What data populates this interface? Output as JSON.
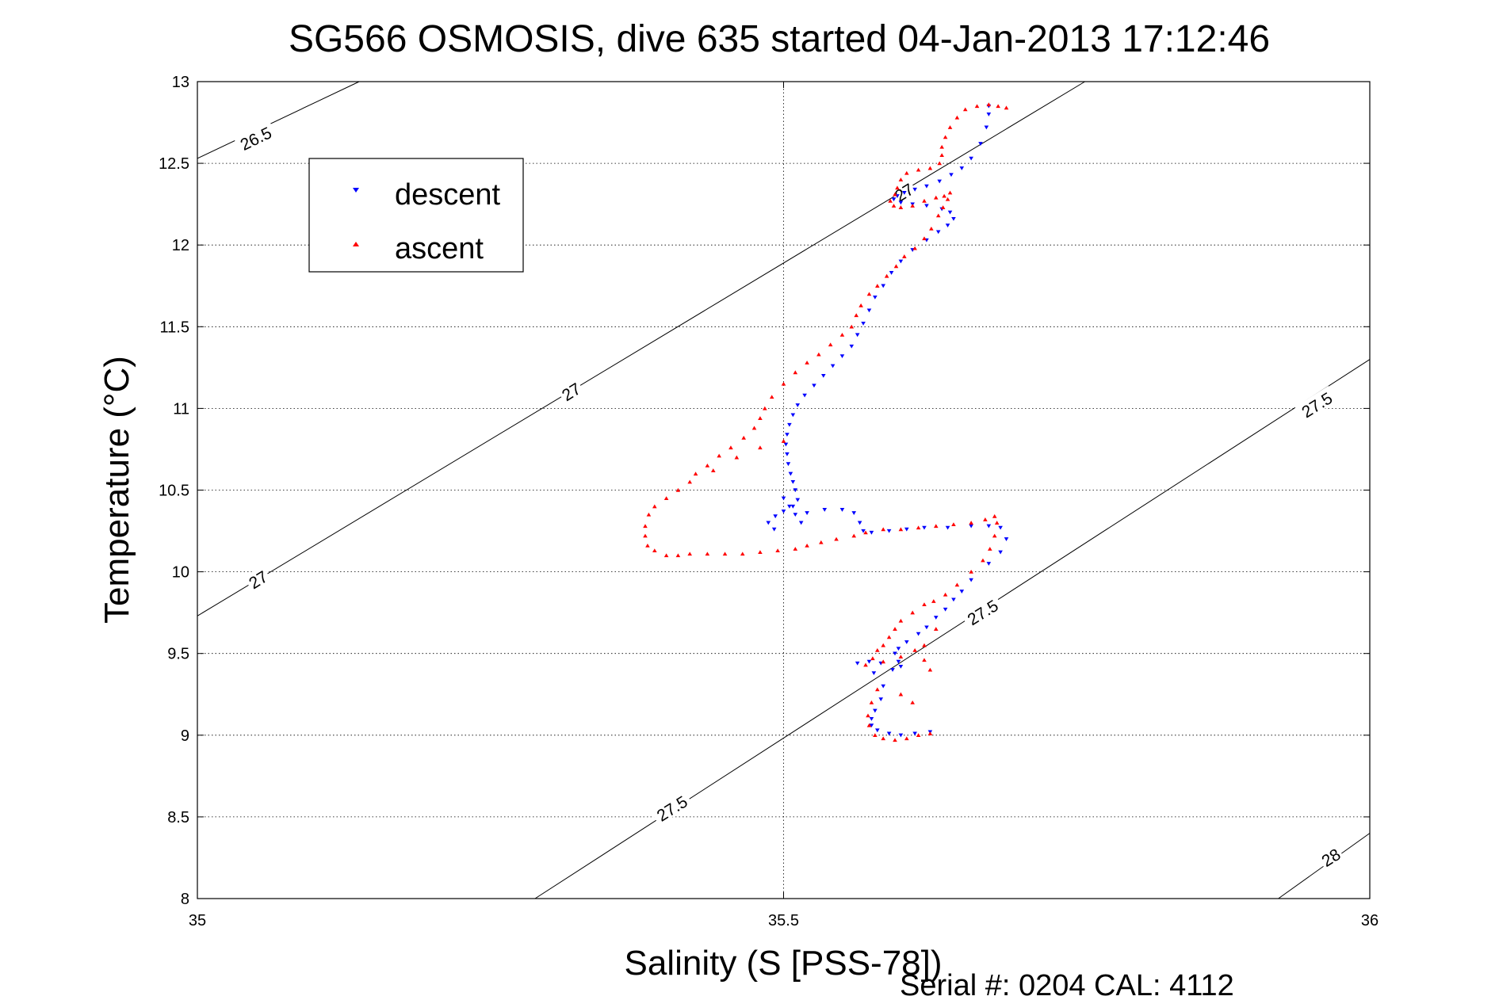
{
  "chart_data": {
    "type": "scatter",
    "title": "SG566 OSMOSIS, dive 635 started 04-Jan-2013 17:12:46",
    "xlabel": "Salinity (S [PSS-78])",
    "ylabel": "Temperature (°C)",
    "xlim": [
      35,
      36
    ],
    "ylim": [
      8,
      13
    ],
    "x_ticks": [
      "35",
      "35.5",
      "36"
    ],
    "y_ticks": [
      "8",
      "8.5",
      "9",
      "9.5",
      "10",
      "10.5",
      "11",
      "11.5",
      "12",
      "12.5",
      "13"
    ],
    "grid": true,
    "legend_position": "top-left",
    "footer": "Serial #: 0204  CAL: 4112",
    "isopycnals": [
      {
        "label": "26.5",
        "points": [
          [
            35,
            12.53
          ],
          [
            35.138,
            13.0
          ]
        ]
      },
      {
        "label": "27",
        "points": [
          [
            35,
            9.73
          ],
          [
            35.757,
            13.0
          ]
        ]
      },
      {
        "label": "27.5",
        "points": [
          [
            35.288,
            8.0
          ],
          [
            36.0,
            11.3
          ]
        ]
      },
      {
        "label": "28",
        "points": [
          [
            35.922,
            8.0
          ],
          [
            36.0,
            8.4
          ]
        ]
      }
    ],
    "isopycnal_labels": [
      {
        "text": "26.5",
        "x": 35.05,
        "y": 12.65,
        "angle": -26
      },
      {
        "text": "27",
        "x": 35.319,
        "y": 11.1,
        "angle": -32
      },
      {
        "text": "27",
        "x": 35.052,
        "y": 9.95,
        "angle": -32
      },
      {
        "text": "27",
        "x": 35.603,
        "y": 12.32,
        "angle": -32
      },
      {
        "text": "27.5",
        "x": 35.955,
        "y": 11.02,
        "angle": -32
      },
      {
        "text": "27.5",
        "x": 35.67,
        "y": 9.75,
        "angle": -32
      },
      {
        "text": "27.5",
        "x": 35.405,
        "y": 8.55,
        "angle": -32
      },
      {
        "text": "28",
        "x": 35.967,
        "y": 8.25,
        "angle": -32
      }
    ],
    "series": [
      {
        "name": "descent",
        "color": "#0000ff",
        "marker": "triangle-down",
        "points": [
          [
            35.675,
            12.85
          ],
          [
            35.675,
            12.8
          ],
          [
            35.673,
            12.72
          ],
          [
            35.668,
            12.62
          ],
          [
            35.66,
            12.53
          ],
          [
            35.652,
            12.47
          ],
          [
            35.643,
            12.43
          ],
          [
            35.633,
            12.39
          ],
          [
            35.622,
            12.36
          ],
          [
            35.612,
            12.34
          ],
          [
            35.603,
            12.32
          ],
          [
            35.597,
            12.3
          ],
          [
            35.594,
            12.28
          ],
          [
            35.6,
            12.26
          ],
          [
            35.61,
            12.25
          ],
          [
            35.622,
            12.24
          ],
          [
            35.635,
            12.22
          ],
          [
            35.642,
            12.2
          ],
          [
            35.645,
            12.16
          ],
          [
            35.64,
            12.12
          ],
          [
            35.632,
            12.08
          ],
          [
            35.622,
            12.03
          ],
          [
            35.61,
            11.97
          ],
          [
            35.6,
            11.9
          ],
          [
            35.592,
            11.83
          ],
          [
            35.585,
            11.75
          ],
          [
            35.578,
            11.68
          ],
          [
            35.573,
            11.6
          ],
          [
            35.568,
            11.52
          ],
          [
            35.563,
            11.45
          ],
          [
            35.558,
            11.38
          ],
          [
            35.55,
            11.32
          ],
          [
            35.542,
            11.26
          ],
          [
            35.534,
            11.2
          ],
          [
            35.526,
            11.14
          ],
          [
            35.518,
            11.08
          ],
          [
            35.512,
            11.02
          ],
          [
            35.508,
            10.96
          ],
          [
            35.505,
            10.9
          ],
          [
            35.503,
            10.84
          ],
          [
            35.502,
            10.78
          ],
          [
            35.503,
            10.72
          ],
          [
            35.504,
            10.66
          ],
          [
            35.506,
            10.6
          ],
          [
            35.508,
            10.55
          ],
          [
            35.51,
            10.5
          ],
          [
            35.512,
            10.44
          ],
          [
            35.508,
            10.4
          ],
          [
            35.5,
            10.37
          ],
          [
            35.493,
            10.34
          ],
          [
            35.487,
            10.3
          ],
          [
            35.492,
            10.26
          ],
          [
            35.5,
            10.45
          ],
          [
            35.505,
            10.4
          ],
          [
            35.51,
            10.35
          ],
          [
            35.515,
            10.3
          ],
          [
            35.52,
            10.36
          ],
          [
            35.535,
            10.38
          ],
          [
            35.55,
            10.38
          ],
          [
            35.56,
            10.36
          ],
          [
            35.565,
            10.3
          ],
          [
            35.568,
            10.25
          ],
          [
            35.575,
            10.24
          ],
          [
            35.59,
            10.25
          ],
          [
            35.605,
            10.26
          ],
          [
            35.62,
            10.27
          ],
          [
            35.64,
            10.27
          ],
          [
            35.66,
            10.28
          ],
          [
            35.675,
            10.28
          ],
          [
            35.685,
            10.27
          ],
          [
            35.69,
            10.2
          ],
          [
            35.685,
            10.12
          ],
          [
            35.675,
            10.05
          ],
          [
            35.66,
            9.95
          ],
          [
            35.652,
            9.88
          ],
          [
            35.645,
            9.83
          ],
          [
            35.638,
            9.77
          ],
          [
            35.63,
            9.72
          ],
          [
            35.622,
            9.66
          ],
          [
            35.615,
            9.62
          ],
          [
            35.605,
            9.57
          ],
          [
            35.598,
            9.53
          ],
          [
            35.595,
            9.5
          ],
          [
            35.598,
            9.45
          ],
          [
            35.6,
            9.42
          ],
          [
            35.593,
            9.4
          ],
          [
            35.583,
            9.44
          ],
          [
            35.573,
            9.45
          ],
          [
            35.563,
            9.44
          ],
          [
            35.577,
            9.38
          ],
          [
            35.585,
            9.3
          ],
          [
            35.583,
            9.22
          ],
          [
            35.578,
            9.15
          ],
          [
            35.575,
            9.1
          ],
          [
            35.575,
            9.06
          ],
          [
            35.58,
            9.03
          ],
          [
            35.59,
            9.01
          ],
          [
            35.6,
            9.0
          ],
          [
            35.612,
            9.01
          ],
          [
            35.625,
            9.02
          ]
        ]
      },
      {
        "name": "ascent",
        "color": "#ff0000",
        "marker": "triangle-up",
        "points": [
          [
            35.69,
            12.84
          ],
          [
            35.683,
            12.85
          ],
          [
            35.675,
            12.86
          ],
          [
            35.665,
            12.85
          ],
          [
            35.655,
            12.83
          ],
          [
            35.648,
            12.78
          ],
          [
            35.642,
            12.72
          ],
          [
            35.638,
            12.66
          ],
          [
            35.635,
            12.6
          ],
          [
            35.635,
            12.55
          ],
          [
            35.633,
            12.5
          ],
          [
            35.625,
            12.47
          ],
          [
            35.615,
            12.46
          ],
          [
            35.605,
            12.44
          ],
          [
            35.6,
            12.4
          ],
          [
            35.597,
            12.35
          ],
          [
            35.595,
            12.31
          ],
          [
            35.591,
            12.27
          ],
          [
            35.594,
            12.24
          ],
          [
            35.6,
            12.23
          ],
          [
            35.61,
            12.24
          ],
          [
            35.62,
            12.27
          ],
          [
            35.63,
            12.29
          ],
          [
            35.637,
            12.3
          ],
          [
            35.642,
            12.32
          ],
          [
            35.64,
            12.28
          ],
          [
            35.636,
            12.23
          ],
          [
            35.632,
            12.18
          ],
          [
            35.626,
            12.1
          ],
          [
            35.62,
            12.04
          ],
          [
            35.612,
            11.98
          ],
          [
            35.603,
            11.93
          ],
          [
            35.596,
            11.87
          ],
          [
            35.588,
            11.81
          ],
          [
            35.58,
            11.75
          ],
          [
            35.573,
            11.7
          ],
          [
            35.566,
            11.63
          ],
          [
            35.562,
            11.57
          ],
          [
            35.558,
            11.5
          ],
          [
            35.55,
            11.45
          ],
          [
            35.54,
            11.39
          ],
          [
            35.53,
            11.33
          ],
          [
            35.52,
            11.28
          ],
          [
            35.51,
            11.22
          ],
          [
            35.5,
            11.15
          ],
          [
            35.49,
            11.07
          ],
          [
            35.484,
            11.0
          ],
          [
            35.48,
            10.94
          ],
          [
            35.475,
            10.88
          ],
          [
            35.466,
            10.82
          ],
          [
            35.455,
            10.76
          ],
          [
            35.445,
            10.71
          ],
          [
            35.435,
            10.65
          ],
          [
            35.425,
            10.6
          ],
          [
            35.44,
            10.62
          ],
          [
            35.46,
            10.7
          ],
          [
            35.48,
            10.76
          ],
          [
            35.5,
            10.8
          ],
          [
            35.42,
            10.55
          ],
          [
            35.41,
            10.5
          ],
          [
            35.4,
            10.45
          ],
          [
            35.39,
            10.4
          ],
          [
            35.385,
            10.35
          ],
          [
            35.382,
            10.28
          ],
          [
            35.382,
            10.22
          ],
          [
            35.384,
            10.16
          ],
          [
            35.39,
            10.13
          ],
          [
            35.4,
            10.1
          ],
          [
            35.41,
            10.1
          ],
          [
            35.42,
            10.11
          ],
          [
            35.435,
            10.11
          ],
          [
            35.45,
            10.11
          ],
          [
            35.465,
            10.11
          ],
          [
            35.48,
            10.12
          ],
          [
            35.495,
            10.13
          ],
          [
            35.51,
            10.14
          ],
          [
            35.52,
            10.16
          ],
          [
            35.532,
            10.18
          ],
          [
            35.545,
            10.2
          ],
          [
            35.56,
            10.22
          ],
          [
            35.57,
            10.24
          ],
          [
            35.585,
            10.26
          ],
          [
            35.6,
            10.26
          ],
          [
            35.615,
            10.27
          ],
          [
            35.63,
            10.28
          ],
          [
            35.645,
            10.29
          ],
          [
            35.66,
            10.3
          ],
          [
            35.672,
            10.32
          ],
          [
            35.68,
            10.34
          ],
          [
            35.682,
            10.3
          ],
          [
            35.68,
            10.22
          ],
          [
            35.676,
            10.14
          ],
          [
            35.67,
            10.07
          ],
          [
            35.66,
            10.0
          ],
          [
            35.648,
            9.92
          ],
          [
            35.638,
            9.86
          ],
          [
            35.628,
            9.82
          ],
          [
            35.62,
            9.8
          ],
          [
            35.61,
            9.75
          ],
          [
            35.6,
            9.7
          ],
          [
            35.595,
            9.65
          ],
          [
            35.59,
            9.6
          ],
          [
            35.585,
            9.55
          ],
          [
            35.58,
            9.52
          ],
          [
            35.576,
            9.47
          ],
          [
            35.57,
            9.43
          ],
          [
            35.585,
            9.45
          ],
          [
            35.6,
            9.48
          ],
          [
            35.612,
            9.52
          ],
          [
            35.62,
            9.46
          ],
          [
            35.625,
            9.4
          ],
          [
            35.58,
            9.28
          ],
          [
            35.575,
            9.2
          ],
          [
            35.572,
            9.12
          ],
          [
            35.573,
            9.06
          ],
          [
            35.578,
            9.0
          ],
          [
            35.585,
            8.98
          ],
          [
            35.595,
            8.97
          ],
          [
            35.605,
            8.98
          ],
          [
            35.615,
            9.0
          ],
          [
            35.625,
            9.01
          ],
          [
            35.6,
            9.25
          ],
          [
            35.61,
            9.2
          ],
          [
            35.62,
            9.55
          ],
          [
            35.63,
            9.65
          ]
        ]
      }
    ]
  }
}
